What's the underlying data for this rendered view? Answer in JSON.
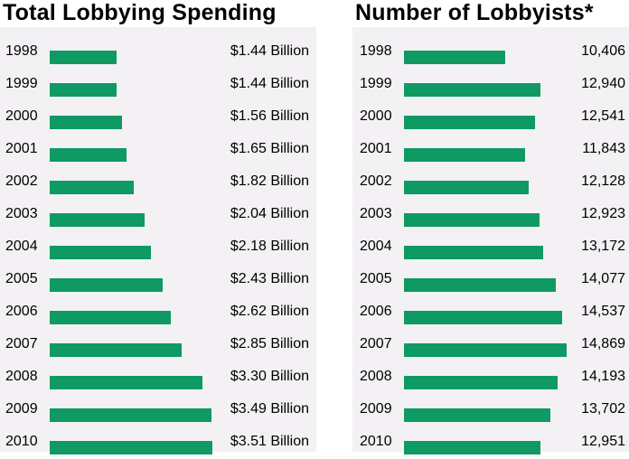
{
  "chart_data": [
    {
      "type": "bar",
      "orientation": "horizontal",
      "title": "Total Lobbying Spending",
      "categories": [
        "1998",
        "1999",
        "2000",
        "2001",
        "2002",
        "2003",
        "2004",
        "2005",
        "2006",
        "2007",
        "2008",
        "2009",
        "2010"
      ],
      "values": [
        1.44,
        1.44,
        1.56,
        1.65,
        1.82,
        2.04,
        2.18,
        2.43,
        2.62,
        2.85,
        3.3,
        3.49,
        3.51
      ],
      "value_labels": [
        "$1.44 Billion",
        "$1.44 Billion",
        "$1.56 Billion",
        "$1.65 Billion",
        "$1.82 Billion",
        "$2.04 Billion",
        "$2.18 Billion",
        "$2.43 Billion",
        "$2.62 Billion",
        "$2.85 Billion",
        "$3.30 Billion",
        "$3.49 Billion",
        "$3.51 Billion"
      ],
      "unit": "Billion USD",
      "xlabel": "",
      "ylabel": "",
      "grid": false,
      "color": "#0e9a62"
    },
    {
      "type": "bar",
      "orientation": "horizontal",
      "title": "Number of Lobbyists*",
      "categories": [
        "1998",
        "1999",
        "2000",
        "2001",
        "2002",
        "2003",
        "2004",
        "2005",
        "2006",
        "2007",
        "2008",
        "2009",
        "2010"
      ],
      "values": [
        10406,
        12940,
        12541,
        11843,
        12128,
        12923,
        13172,
        14077,
        14537,
        14869,
        14193,
        13702,
        12951
      ],
      "value_labels": [
        "10,406",
        "12,940",
        "12,541",
        "11,843",
        "12,128",
        "12,923",
        "13,172",
        "14,077",
        "14,537",
        "14,869",
        "14,193",
        "13,702",
        "12,951"
      ],
      "xlabel": "",
      "ylabel": "",
      "grid": false,
      "color": "#0e9a62"
    }
  ]
}
